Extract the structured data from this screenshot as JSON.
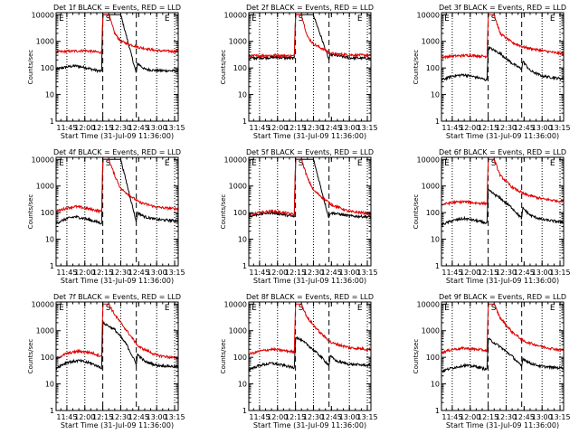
{
  "colors": {
    "events": "#000000",
    "lld": "#e00000",
    "axes": "#000000",
    "background": "#ffffff"
  },
  "common": {
    "xlabel": "Start Time (31-Jul-09 11:36:00)",
    "ylabel": "Counts/sec",
    "x_tick_labels": [
      "11:45",
      "12:00",
      "12:15",
      "12:30",
      "12:45",
      "13:00",
      "13:15"
    ],
    "y_tick_labels": [
      "1",
      "10",
      "100",
      "1000",
      "10000"
    ],
    "marker_labels": [
      "E",
      "S",
      "E"
    ]
  },
  "chart_data": [
    {
      "type": "line",
      "title": "Det 1f BLACK = Events, RED = LLD",
      "yscale": "log",
      "ylim": [
        1,
        12000
      ],
      "xlim": [
        "11:36",
        "13:18"
      ],
      "x_dotted_lines": [
        "11:45",
        "12:00",
        "12:30",
        "13:00",
        "13:15"
      ],
      "x_dashed_lines": [
        "12:15",
        "12:43"
      ],
      "series": [
        {
          "name": "Events",
          "x": [
            "11:36",
            "11:45",
            "11:52",
            "12:00",
            "12:10",
            "12:14",
            "12:15",
            "12:30",
            "12:43",
            "12:44",
            "12:50",
            "13:00",
            "13:15"
          ],
          "values": [
            90,
            110,
            120,
            105,
            80,
            75,
            10000,
            10000,
            62,
            150,
            90,
            80,
            78
          ]
        },
        {
          "name": "LLD",
          "x": [
            "11:36",
            "11:45",
            "12:00",
            "12:10",
            "12:14",
            "12:15",
            "12:20",
            "12:25",
            "12:30",
            "12:45",
            "13:00",
            "13:15"
          ],
          "values": [
            400,
            420,
            450,
            400,
            380,
            10000,
            10000,
            2000,
            1000,
            600,
            450,
            420
          ]
        }
      ]
    },
    {
      "type": "line",
      "title": "Det 2f BLACK = Events, RED = LLD",
      "yscale": "log",
      "ylim": [
        1,
        12000
      ],
      "xlim": [
        "11:36",
        "13:18"
      ],
      "x_dotted_lines": [
        "11:45",
        "12:00",
        "12:30",
        "13:00",
        "13:15"
      ],
      "x_dashed_lines": [
        "12:15",
        "12:43"
      ],
      "series": [
        {
          "name": "Events",
          "x": [
            "11:36",
            "11:45",
            "12:00",
            "12:14",
            "12:15",
            "12:30",
            "12:43",
            "12:44",
            "13:00",
            "13:15"
          ],
          "values": [
            230,
            240,
            250,
            230,
            10000,
            10000,
            200,
            320,
            240,
            230
          ]
        },
        {
          "name": "LLD",
          "x": [
            "11:36",
            "11:45",
            "12:00",
            "12:14",
            "12:15",
            "12:20",
            "12:25",
            "12:30",
            "12:45",
            "13:00",
            "13:15"
          ],
          "values": [
            280,
            290,
            300,
            280,
            10000,
            10000,
            1500,
            800,
            350,
            310,
            300
          ]
        }
      ]
    },
    {
      "type": "line",
      "title": "Det 3f BLACK = Events, RED = LLD",
      "yscale": "log",
      "ylim": [
        1,
        12000
      ],
      "xlim": [
        "11:36",
        "13:18"
      ],
      "x_dotted_lines": [
        "11:45",
        "12:00",
        "12:30",
        "13:00",
        "13:15"
      ],
      "x_dashed_lines": [
        "12:15",
        "12:43"
      ],
      "series": [
        {
          "name": "Events",
          "x": [
            "11:36",
            "11:45",
            "11:55",
            "12:05",
            "12:14",
            "12:15",
            "12:25",
            "12:35",
            "12:43",
            "12:44",
            "12:50",
            "13:00",
            "13:15"
          ],
          "values": [
            35,
            50,
            55,
            45,
            35,
            600,
            350,
            150,
            90,
            180,
            80,
            50,
            40
          ]
        },
        {
          "name": "LLD",
          "x": [
            "11:36",
            "11:45",
            "12:00",
            "12:14",
            "12:15",
            "12:20",
            "12:25",
            "12:35",
            "12:45",
            "13:00",
            "13:15"
          ],
          "values": [
            250,
            280,
            300,
            270,
            10000,
            10000,
            2000,
            900,
            600,
            450,
            350
          ]
        }
      ]
    },
    {
      "type": "line",
      "title": "Det 4f BLACK = Events, RED = LLD",
      "yscale": "log",
      "ylim": [
        1,
        12000
      ],
      "xlim": [
        "11:36",
        "13:18"
      ],
      "x_dotted_lines": [
        "11:45",
        "12:00",
        "12:30",
        "13:00",
        "13:15"
      ],
      "x_dashed_lines": [
        "12:15",
        "12:43"
      ],
      "series": [
        {
          "name": "Events",
          "x": [
            "11:36",
            "11:45",
            "11:52",
            "12:00",
            "12:10",
            "12:14",
            "12:15",
            "12:30",
            "12:43",
            "12:44",
            "12:50",
            "13:00",
            "13:15"
          ],
          "values": [
            40,
            60,
            70,
            60,
            45,
            40,
            10000,
            10000,
            45,
            100,
            70,
            55,
            50
          ]
        },
        {
          "name": "LLD",
          "x": [
            "11:36",
            "11:45",
            "11:52",
            "12:00",
            "12:10",
            "12:14",
            "12:15",
            "12:20",
            "12:25",
            "12:30",
            "12:45",
            "13:00",
            "13:15"
          ],
          "values": [
            110,
            150,
            170,
            150,
            120,
            110,
            10000,
            10000,
            2500,
            800,
            250,
            160,
            140
          ]
        }
      ]
    },
    {
      "type": "line",
      "title": "Det 5f BLACK = Events, RED = LLD",
      "yscale": "log",
      "ylim": [
        1,
        12000
      ],
      "xlim": [
        "11:36",
        "13:18"
      ],
      "x_dotted_lines": [
        "11:45",
        "12:00",
        "12:30",
        "13:00",
        "13:15"
      ],
      "x_dashed_lines": [
        "12:15",
        "12:43"
      ],
      "series": [
        {
          "name": "Events",
          "x": [
            "11:36",
            "11:45",
            "11:55",
            "12:05",
            "12:14",
            "12:15",
            "12:30",
            "12:43",
            "12:44",
            "13:00",
            "13:15"
          ],
          "values": [
            70,
            90,
            100,
            85,
            70,
            10000,
            10000,
            60,
            100,
            75,
            70
          ]
        },
        {
          "name": "LLD",
          "x": [
            "11:36",
            "11:45",
            "11:55",
            "12:05",
            "12:14",
            "12:15",
            "12:20",
            "12:25",
            "12:30",
            "12:45",
            "13:00",
            "13:15"
          ],
          "values": [
            80,
            100,
            115,
            100,
            85,
            10000,
            10000,
            2000,
            700,
            200,
            110,
            95
          ]
        }
      ]
    },
    {
      "type": "line",
      "title": "Det 6f BLACK = Events, RED = LLD",
      "yscale": "log",
      "ylim": [
        1,
        12000
      ],
      "xlim": [
        "11:36",
        "13:18"
      ],
      "x_dotted_lines": [
        "11:45",
        "12:00",
        "12:30",
        "13:00",
        "13:15"
      ],
      "x_dashed_lines": [
        "12:15",
        "12:43"
      ],
      "series": [
        {
          "name": "Events",
          "x": [
            "11:36",
            "11:45",
            "11:55",
            "12:05",
            "12:14",
            "12:15",
            "12:25",
            "12:35",
            "12:43",
            "12:44",
            "12:50",
            "13:00",
            "13:15"
          ],
          "values": [
            35,
            50,
            60,
            50,
            40,
            700,
            350,
            150,
            60,
            150,
            80,
            55,
            45
          ]
        },
        {
          "name": "LLD",
          "x": [
            "11:36",
            "11:45",
            "11:55",
            "12:05",
            "12:14",
            "12:15",
            "12:20",
            "12:25",
            "12:35",
            "12:45",
            "13:00",
            "13:15"
          ],
          "values": [
            200,
            240,
            260,
            230,
            220,
            10000,
            10000,
            2500,
            900,
            500,
            330,
            270
          ]
        }
      ]
    },
    {
      "type": "line",
      "title": "Det 7f BLACK = Events, RED = LLD",
      "yscale": "log",
      "ylim": [
        1,
        12000
      ],
      "xlim": [
        "11:36",
        "13:18"
      ],
      "x_dotted_lines": [
        "11:45",
        "12:00",
        "12:30",
        "13:00",
        "13:15"
      ],
      "x_dashed_lines": [
        "12:15",
        "12:43"
      ],
      "series": [
        {
          "name": "Events",
          "x": [
            "11:36",
            "11:45",
            "11:55",
            "12:05",
            "12:14",
            "12:15",
            "12:25",
            "12:35",
            "12:43",
            "12:44",
            "12:50",
            "13:00",
            "13:15"
          ],
          "values": [
            40,
            65,
            75,
            60,
            40,
            2000,
            1100,
            300,
            55,
            130,
            70,
            50,
            45
          ]
        },
        {
          "name": "LLD",
          "x": [
            "11:36",
            "11:45",
            "11:55",
            "12:05",
            "12:14",
            "12:15",
            "12:20",
            "12:25",
            "12:35",
            "12:45",
            "13:00",
            "13:15"
          ],
          "values": [
            90,
            140,
            170,
            150,
            110,
            10000,
            10000,
            4000,
            1000,
            250,
            120,
            95
          ]
        }
      ]
    },
    {
      "type": "line",
      "title": "Det 8f BLACK = Events, RED = LLD",
      "yscale": "log",
      "ylim": [
        1,
        12000
      ],
      "xlim": [
        "11:36",
        "13:18"
      ],
      "x_dotted_lines": [
        "11:45",
        "12:00",
        "12:30",
        "13:00",
        "13:15"
      ],
      "x_dashed_lines": [
        "12:15",
        "12:43"
      ],
      "series": [
        {
          "name": "Events",
          "x": [
            "11:36",
            "11:45",
            "11:55",
            "12:05",
            "12:14",
            "12:15",
            "12:25",
            "12:35",
            "12:43",
            "12:44",
            "12:50",
            "13:00",
            "13:15"
          ],
          "values": [
            35,
            50,
            60,
            50,
            40,
            600,
            300,
            120,
            50,
            110,
            70,
            55,
            50
          ]
        },
        {
          "name": "LLD",
          "x": [
            "11:36",
            "11:45",
            "11:55",
            "12:05",
            "12:14",
            "12:15",
            "12:20",
            "12:25",
            "12:35",
            "12:45",
            "13:00",
            "13:15"
          ],
          "values": [
            130,
            170,
            200,
            180,
            160,
            10000,
            10000,
            3000,
            900,
            350,
            230,
            200
          ]
        }
      ]
    },
    {
      "type": "line",
      "title": "Det 9f BLACK = Events, RED = LLD",
      "yscale": "log",
      "ylim": [
        1,
        12000
      ],
      "xlim": [
        "11:36",
        "13:18"
      ],
      "x_dotted_lines": [
        "11:45",
        "12:00",
        "12:30",
        "13:00",
        "13:15"
      ],
      "x_dashed_lines": [
        "12:15",
        "12:43"
      ],
      "series": [
        {
          "name": "Events",
          "x": [
            "11:36",
            "11:45",
            "11:55",
            "12:05",
            "12:14",
            "12:15",
            "12:25",
            "12:35",
            "12:43",
            "12:44",
            "12:50",
            "13:00",
            "13:15"
          ],
          "values": [
            30,
            40,
            50,
            45,
            35,
            500,
            250,
            110,
            45,
            90,
            60,
            45,
            40
          ]
        },
        {
          "name": "LLD",
          "x": [
            "11:36",
            "11:45",
            "11:55",
            "12:05",
            "12:14",
            "12:15",
            "12:20",
            "12:25",
            "12:35",
            "12:45",
            "13:00",
            "13:15"
          ],
          "values": [
            150,
            200,
            220,
            200,
            180,
            10000,
            10000,
            3000,
            900,
            400,
            250,
            190
          ]
        }
      ]
    }
  ]
}
